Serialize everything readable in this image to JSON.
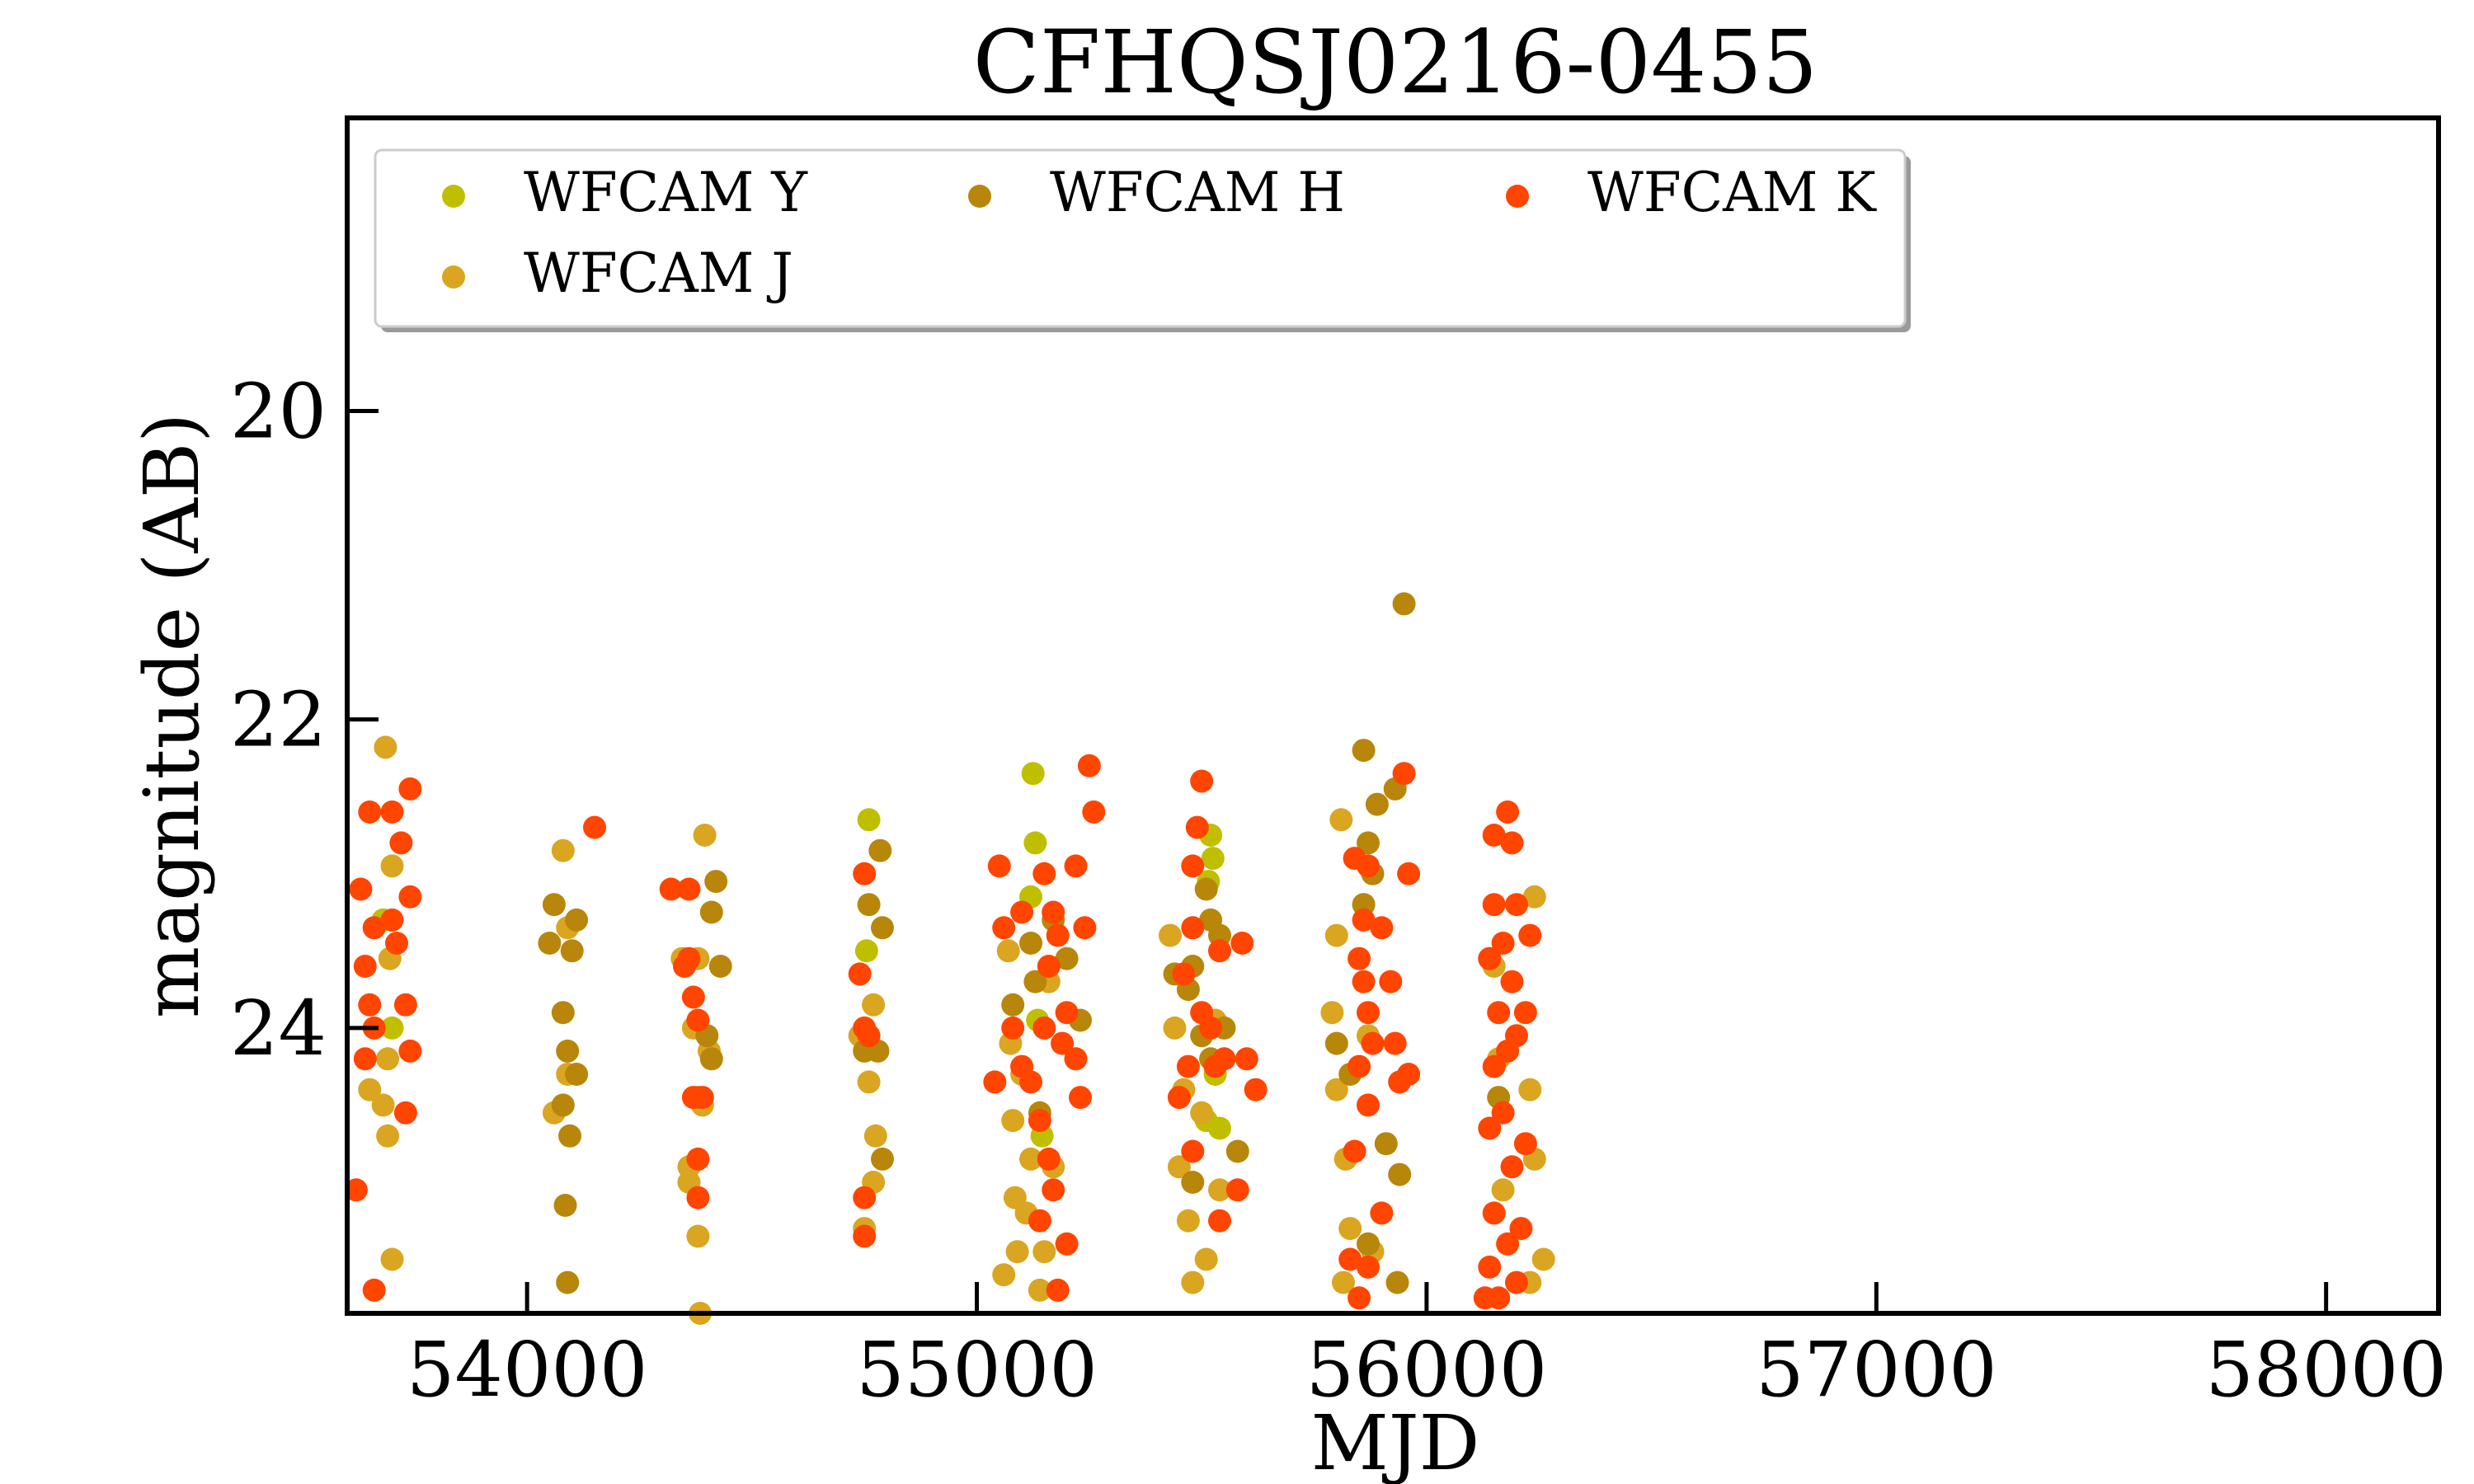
{
  "chart_data": {
    "type": "scatter",
    "title": "CFHQSJ0216-0455",
    "xlabel": "MJD",
    "ylabel": "magnitude (AB)",
    "xlim": [
      53600,
      58250
    ],
    "ylim": [
      25.85,
      18.1
    ],
    "y_inverted": true,
    "xticks": [
      54000,
      55000,
      56000,
      57000,
      58000
    ],
    "yticks": [
      20,
      22,
      24
    ],
    "grid": false,
    "legend_position": "top-left",
    "series": [
      {
        "name": "WFCAM Y",
        "color": "#bfbf00",
        "points": [
          [
            55125,
            22.35
          ],
          [
            55130,
            22.8
          ],
          [
            55520,
            22.75
          ],
          [
            55525,
            22.9
          ],
          [
            54760,
            22.65
          ],
          [
            54755,
            23.5
          ],
          [
            53680,
            23.3
          ],
          [
            55120,
            23.15
          ],
          [
            55515,
            23.05
          ],
          [
            55530,
            24.3
          ],
          [
            55135,
            23.95
          ],
          [
            55510,
            24.6
          ],
          [
            53700,
            24.0
          ],
          [
            55145,
            24.7
          ],
          [
            55540,
            24.65
          ]
        ]
      },
      {
        "name": "WFCAM J",
        "color": "#daa520",
        "points": [
          [
            53685,
            22.18
          ],
          [
            53700,
            22.95
          ],
          [
            53695,
            23.55
          ],
          [
            53690,
            24.2
          ],
          [
            53690,
            24.7
          ],
          [
            53680,
            24.5
          ],
          [
            53700,
            25.5
          ],
          [
            53650,
            24.4
          ],
          [
            54080,
            22.85
          ],
          [
            54090,
            24.3
          ],
          [
            54060,
            24.55
          ],
          [
            54090,
            23.35
          ],
          [
            54395,
            22.75
          ],
          [
            54380,
            23.55
          ],
          [
            54370,
            24.0
          ],
          [
            54390,
            24.5
          ],
          [
            54360,
            24.9
          ],
          [
            54380,
            25.35
          ],
          [
            54385,
            25.85
          ],
          [
            54360,
            25.0
          ],
          [
            54405,
            24.15
          ],
          [
            54345,
            23.55
          ],
          [
            54770,
            23.85
          ],
          [
            54760,
            24.35
          ],
          [
            54775,
            24.7
          ],
          [
            54770,
            25.0
          ],
          [
            54750,
            25.3
          ],
          [
            54740,
            24.05
          ],
          [
            55070,
            23.5
          ],
          [
            55075,
            24.1
          ],
          [
            55080,
            24.6
          ],
          [
            55085,
            25.1
          ],
          [
            55060,
            25.6
          ],
          [
            55110,
            25.2
          ],
          [
            55120,
            24.85
          ],
          [
            55150,
            25.45
          ],
          [
            55160,
            23.7
          ],
          [
            55170,
            24.9
          ],
          [
            55100,
            24.3
          ],
          [
            55140,
            25.7
          ],
          [
            55090,
            25.45
          ],
          [
            55430,
            23.4
          ],
          [
            55440,
            24.0
          ],
          [
            55460,
            24.4
          ],
          [
            55450,
            24.9
          ],
          [
            55470,
            25.25
          ],
          [
            55480,
            25.65
          ],
          [
            55510,
            25.5
          ],
          [
            55500,
            24.55
          ],
          [
            55530,
            23.95
          ],
          [
            55540,
            25.05
          ],
          [
            55810,
            22.65
          ],
          [
            55800,
            23.4
          ],
          [
            55790,
            23.9
          ],
          [
            55800,
            24.4
          ],
          [
            55820,
            24.85
          ],
          [
            55830,
            25.3
          ],
          [
            55815,
            25.65
          ],
          [
            55860,
            23.2
          ],
          [
            55870,
            24.05
          ],
          [
            55880,
            25.45
          ],
          [
            56150,
            23.6
          ],
          [
            56160,
            24.2
          ],
          [
            56230,
            24.4
          ],
          [
            56240,
            24.85
          ],
          [
            56240,
            23.15
          ],
          [
            56260,
            25.5
          ],
          [
            56230,
            25.65
          ],
          [
            56170,
            25.05
          ]
        ]
      },
      {
        "name": "WFCAM H",
        "color": "#b8860b",
        "points": [
          [
            54060,
            23.2
          ],
          [
            54110,
            23.3
          ],
          [
            54050,
            23.45
          ],
          [
            54100,
            23.5
          ],
          [
            54080,
            23.9
          ],
          [
            54090,
            24.15
          ],
          [
            54110,
            24.3
          ],
          [
            54080,
            24.5
          ],
          [
            54095,
            24.7
          ],
          [
            54085,
            25.15
          ],
          [
            54090,
            25.65
          ],
          [
            54420,
            23.05
          ],
          [
            54410,
            23.25
          ],
          [
            54430,
            23.6
          ],
          [
            54400,
            24.05
          ],
          [
            54410,
            24.2
          ],
          [
            54380,
            24.45
          ],
          [
            54785,
            22.85
          ],
          [
            54790,
            23.35
          ],
          [
            54760,
            23.2
          ],
          [
            54750,
            24.15
          ],
          [
            54780,
            24.15
          ],
          [
            54790,
            24.85
          ],
          [
            55170,
            23.3
          ],
          [
            55120,
            23.45
          ],
          [
            55130,
            23.7
          ],
          [
            55080,
            23.85
          ],
          [
            55140,
            24.55
          ],
          [
            55230,
            23.95
          ],
          [
            55200,
            23.55
          ],
          [
            55510,
            23.1
          ],
          [
            55520,
            23.3
          ],
          [
            55540,
            23.4
          ],
          [
            55480,
            23.6
          ],
          [
            55440,
            23.65
          ],
          [
            55470,
            23.75
          ],
          [
            55500,
            24.05
          ],
          [
            55520,
            24.2
          ],
          [
            55550,
            24.0
          ],
          [
            55580,
            24.8
          ],
          [
            55480,
            25.0
          ],
          [
            55860,
            22.2
          ],
          [
            55890,
            22.55
          ],
          [
            55950,
            21.25
          ],
          [
            55930,
            22.45
          ],
          [
            55870,
            22.8
          ],
          [
            55880,
            23.0
          ],
          [
            55860,
            23.2
          ],
          [
            55800,
            24.1
          ],
          [
            55830,
            24.3
          ],
          [
            55910,
            24.75
          ],
          [
            55940,
            24.95
          ],
          [
            55935,
            25.65
          ],
          [
            55870,
            25.4
          ],
          [
            56140,
            23.55
          ],
          [
            56160,
            24.45
          ]
        ]
      },
      {
        "name": "WFCAM K",
        "color": "#ff4500",
        "points": [
          [
            53630,
            23.1
          ],
          [
            53650,
            22.6
          ],
          [
            53700,
            22.6
          ],
          [
            53720,
            22.8
          ],
          [
            53740,
            22.45
          ],
          [
            53740,
            23.15
          ],
          [
            53660,
            23.35
          ],
          [
            53700,
            23.3
          ],
          [
            53710,
            23.45
          ],
          [
            53640,
            23.6
          ],
          [
            53650,
            23.85
          ],
          [
            53660,
            24.0
          ],
          [
            53730,
            23.85
          ],
          [
            53740,
            24.15
          ],
          [
            53730,
            24.55
          ],
          [
            53640,
            24.2
          ],
          [
            53620,
            25.05
          ],
          [
            53660,
            25.7
          ],
          [
            54150,
            22.7
          ],
          [
            54320,
            23.1
          ],
          [
            54360,
            23.1
          ],
          [
            54350,
            23.6
          ],
          [
            54370,
            23.8
          ],
          [
            54380,
            23.95
          ],
          [
            54370,
            24.45
          ],
          [
            54390,
            24.45
          ],
          [
            54380,
            24.85
          ],
          [
            54380,
            25.1
          ],
          [
            54360,
            23.55
          ],
          [
            54750,
            23.0
          ],
          [
            54740,
            23.65
          ],
          [
            54750,
            24.0
          ],
          [
            54760,
            24.05
          ],
          [
            54750,
            25.1
          ],
          [
            54750,
            25.35
          ],
          [
            55050,
            22.95
          ],
          [
            55060,
            23.35
          ],
          [
            55100,
            23.25
          ],
          [
            55150,
            23.0
          ],
          [
            55170,
            23.25
          ],
          [
            55180,
            23.4
          ],
          [
            55200,
            23.9
          ],
          [
            55220,
            22.95
          ],
          [
            55250,
            22.3
          ],
          [
            55260,
            22.6
          ],
          [
            55240,
            23.35
          ],
          [
            55040,
            24.35
          ],
          [
            55080,
            24.0
          ],
          [
            55100,
            24.25
          ],
          [
            55120,
            24.35
          ],
          [
            55140,
            24.6
          ],
          [
            55160,
            24.85
          ],
          [
            55170,
            25.05
          ],
          [
            55140,
            25.25
          ],
          [
            55180,
            25.7
          ],
          [
            55200,
            25.4
          ],
          [
            55220,
            24.2
          ],
          [
            55230,
            24.45
          ],
          [
            55190,
            24.1
          ],
          [
            55160,
            23.6
          ],
          [
            55150,
            24.0
          ],
          [
            55480,
            22.95
          ],
          [
            55500,
            22.4
          ],
          [
            55490,
            22.7
          ],
          [
            55480,
            23.35
          ],
          [
            55460,
            23.65
          ],
          [
            55500,
            23.9
          ],
          [
            55520,
            24.0
          ],
          [
            55530,
            24.25
          ],
          [
            55540,
            23.5
          ],
          [
            55550,
            24.2
          ],
          [
            55590,
            23.45
          ],
          [
            55600,
            24.2
          ],
          [
            55620,
            24.4
          ],
          [
            55580,
            25.05
          ],
          [
            55540,
            25.25
          ],
          [
            55470,
            24.25
          ],
          [
            55450,
            24.45
          ],
          [
            55480,
            24.8
          ],
          [
            55840,
            22.9
          ],
          [
            55870,
            22.95
          ],
          [
            55860,
            23.3
          ],
          [
            55900,
            23.35
          ],
          [
            55920,
            23.7
          ],
          [
            55850,
            23.55
          ],
          [
            55860,
            23.7
          ],
          [
            55870,
            23.9
          ],
          [
            55880,
            24.1
          ],
          [
            55850,
            24.25
          ],
          [
            55870,
            24.5
          ],
          [
            55840,
            24.8
          ],
          [
            55830,
            25.5
          ],
          [
            55850,
            25.75
          ],
          [
            55870,
            25.55
          ],
          [
            55900,
            25.2
          ],
          [
            55960,
            23.0
          ],
          [
            55950,
            22.35
          ],
          [
            55930,
            24.1
          ],
          [
            55960,
            24.3
          ],
          [
            55940,
            24.35
          ],
          [
            56150,
            22.75
          ],
          [
            56180,
            22.6
          ],
          [
            56190,
            22.8
          ],
          [
            56200,
            23.2
          ],
          [
            56150,
            23.2
          ],
          [
            56170,
            23.45
          ],
          [
            56140,
            23.55
          ],
          [
            56190,
            23.7
          ],
          [
            56160,
            23.9
          ],
          [
            56200,
            24.05
          ],
          [
            56220,
            23.9
          ],
          [
            56180,
            24.15
          ],
          [
            56150,
            24.25
          ],
          [
            56170,
            24.55
          ],
          [
            56140,
            24.65
          ],
          [
            56190,
            24.9
          ],
          [
            56150,
            25.2
          ],
          [
            56180,
            25.4
          ],
          [
            56140,
            25.55
          ],
          [
            56160,
            25.75
          ],
          [
            56200,
            25.65
          ],
          [
            56210,
            25.3
          ],
          [
            56230,
            23.4
          ],
          [
            56220,
            24.75
          ],
          [
            56130,
            25.75
          ]
        ]
      }
    ]
  }
}
